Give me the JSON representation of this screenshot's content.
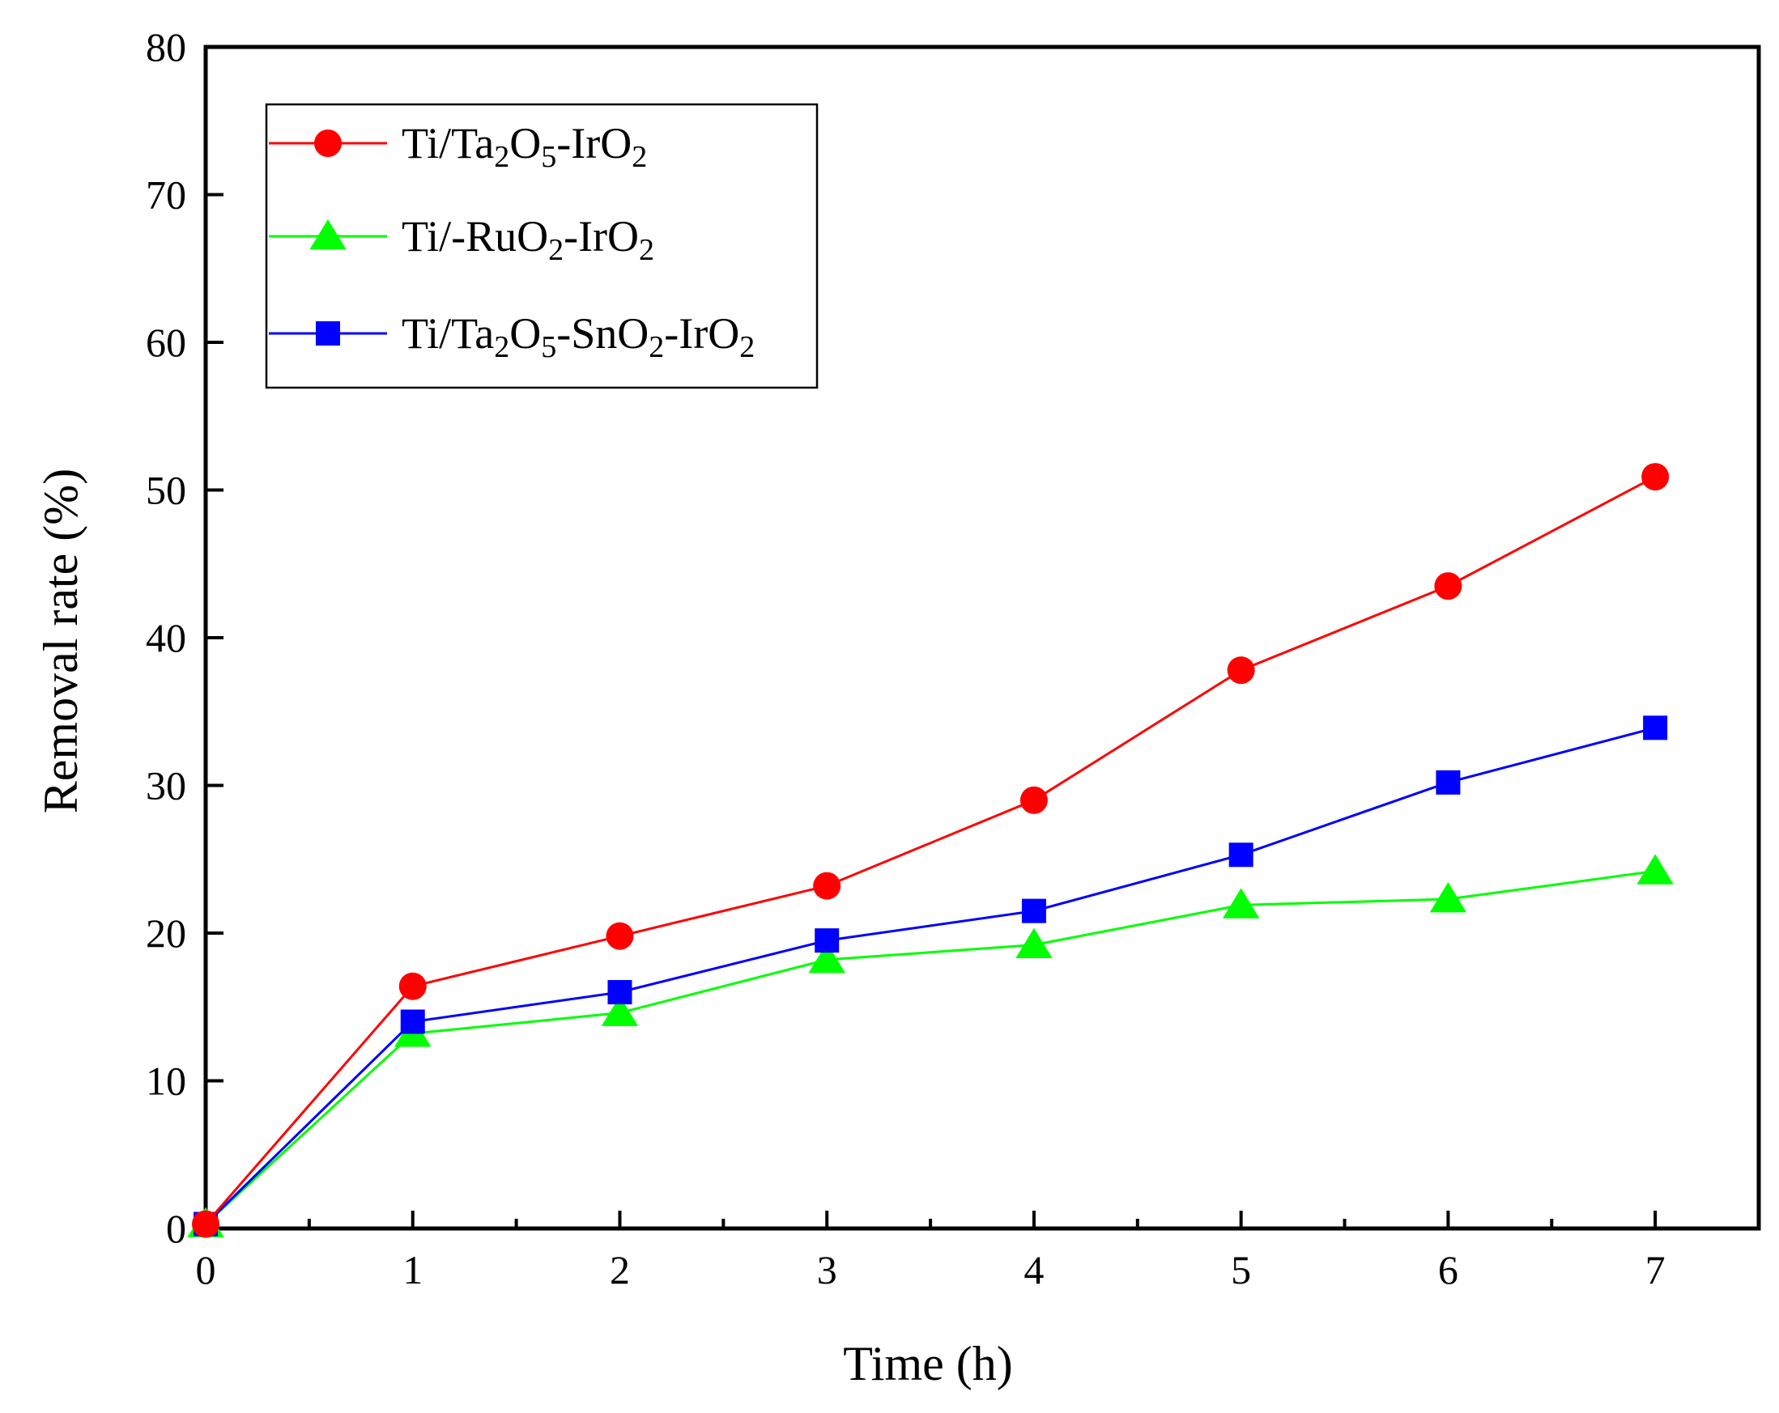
{
  "chart_data": {
    "type": "line",
    "xlabel": "Time (h)",
    "ylabel": "Removal rate (%)",
    "xlim": [
      0,
      7.5
    ],
    "ylim": [
      0,
      80
    ],
    "x_ticks": [
      0,
      1,
      2,
      3,
      4,
      5,
      6,
      7
    ],
    "y_ticks": [
      0,
      10,
      20,
      30,
      40,
      50,
      60,
      70,
      80
    ],
    "grid": false,
    "legend_position": "top-left",
    "series": [
      {
        "name": "Ti/Ta2O5-IrO2",
        "label_parts": [
          [
            "Ti/Ta",
            ""
          ],
          [
            "2",
            "sub"
          ],
          [
            "O",
            ""
          ],
          [
            "5",
            "sub"
          ],
          [
            "-IrO",
            ""
          ],
          [
            "2",
            "sub"
          ]
        ],
        "color": "#ff0000",
        "marker": "circle",
        "x": [
          0,
          1,
          2,
          3,
          4,
          5,
          6,
          7
        ],
        "y": [
          0.3,
          16.4,
          19.8,
          23.2,
          29.0,
          37.8,
          43.5,
          50.9
        ]
      },
      {
        "name": "Ti/-RuO2-IrO2",
        "label_parts": [
          [
            "Ti/-RuO",
            ""
          ],
          [
            "2",
            "sub"
          ],
          [
            "-IrO",
            ""
          ],
          [
            "2",
            "sub"
          ]
        ],
        "color": "#00ff00",
        "marker": "triangle",
        "x": [
          0,
          1,
          2,
          3,
          4,
          5,
          6,
          7
        ],
        "y": [
          0.3,
          13.2,
          14.6,
          18.2,
          19.2,
          21.9,
          22.3,
          24.2
        ]
      },
      {
        "name": "Ti/Ta2O5-SnO2-IrO2",
        "label_parts": [
          [
            "Ti/Ta",
            ""
          ],
          [
            "2",
            "sub"
          ],
          [
            "O",
            ""
          ],
          [
            "5",
            "sub"
          ],
          [
            "-SnO",
            ""
          ],
          [
            "2",
            "sub"
          ],
          [
            "-IrO",
            ""
          ],
          [
            "2",
            "sub"
          ]
        ],
        "color": "#0000ff",
        "marker": "square",
        "x": [
          0,
          1,
          2,
          3,
          4,
          5,
          6,
          7
        ],
        "y": [
          0.3,
          14.0,
          16.0,
          19.5,
          21.5,
          25.3,
          30.2,
          33.9
        ]
      }
    ]
  }
}
